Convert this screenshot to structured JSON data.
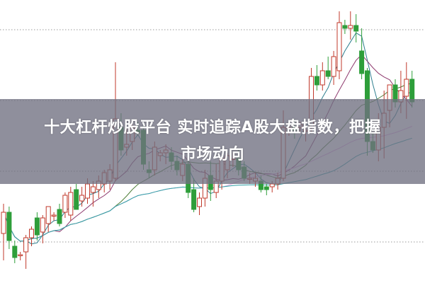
{
  "banner": {
    "line1": "十大杠杆炒股平台 实时追踪A股大盘指数，把握",
    "line2": "市场动向"
  },
  "colors": {
    "up": "#c0392b",
    "down": "#2e9e3a",
    "grid": "#9a9a9a",
    "ma": [
      "#2f7f8f",
      "#8e3a6e",
      "#4f7f3a",
      "#e2a6e2",
      "#2fa0a6"
    ]
  },
  "chart_data": {
    "type": "candlestick",
    "title": "",
    "xlabel": "",
    "ylabel": "",
    "ylim": [
      0,
      100
    ],
    "grid": true,
    "moving_averages": [
      5,
      10,
      20,
      40,
      60
    ],
    "candles": [
      [
        17.5,
        28,
        8,
        25
      ],
      [
        25,
        27,
        12,
        15
      ],
      [
        13,
        15,
        7,
        9
      ],
      [
        10,
        11,
        8,
        10
      ],
      [
        11,
        17,
        5,
        16
      ],
      [
        16,
        20,
        13,
        19
      ],
      [
        23,
        25,
        15,
        17
      ],
      [
        18,
        24,
        14,
        23
      ],
      [
        21,
        27,
        18,
        27
      ],
      [
        24,
        25,
        22,
        24
      ],
      [
        26,
        28,
        20,
        21
      ],
      [
        25,
        32,
        23,
        31
      ],
      [
        24,
        34,
        22,
        32
      ],
      [
        33,
        35,
        26,
        26
      ],
      [
        29,
        34,
        27,
        31
      ],
      [
        30,
        37,
        28,
        35
      ],
      [
        32,
        36,
        27,
        34
      ],
      [
        33,
        38,
        30,
        36
      ],
      [
        35,
        40,
        32,
        39
      ],
      [
        36,
        42,
        33,
        40
      ],
      [
        37,
        78,
        36,
        58
      ],
      [
        55,
        60,
        45,
        47
      ],
      [
        48,
        55,
        45,
        49
      ],
      [
        50,
        56,
        47,
        55
      ],
      [
        54,
        57,
        52,
        53
      ],
      [
        54,
        56,
        40,
        42
      ],
      [
        40,
        43,
        37,
        39
      ],
      [
        40,
        50,
        38,
        48
      ],
      [
        45,
        47,
        43,
        46
      ],
      [
        46,
        49,
        42,
        47
      ],
      [
        46,
        48,
        40,
        43
      ],
      [
        43,
        45,
        38,
        40
      ],
      [
        38,
        44,
        36,
        42
      ],
      [
        42,
        44,
        30,
        32
      ],
      [
        33,
        37,
        25,
        26
      ],
      [
        27,
        32,
        24,
        30
      ],
      [
        30,
        40,
        27,
        37
      ],
      [
        38,
        43,
        29,
        33
      ],
      [
        32,
        42,
        30,
        36
      ],
      [
        36,
        45,
        33,
        44
      ],
      [
        40,
        46,
        37,
        45
      ],
      [
        44,
        46,
        41,
        44
      ],
      [
        44,
        47,
        38,
        40
      ],
      [
        41,
        43,
        36,
        37
      ],
      [
        37,
        39,
        35,
        37
      ],
      [
        36,
        39,
        34,
        37
      ],
      [
        36,
        38,
        32,
        33
      ],
      [
        34,
        35,
        31,
        33
      ],
      [
        34,
        36,
        32,
        35
      ],
      [
        35,
        39,
        33,
        37
      ],
      [
        37,
        61,
        36,
        55
      ],
      [
        55,
        57,
        52,
        55
      ],
      [
        55,
        58,
        51,
        54
      ],
      [
        55,
        57,
        53,
        56
      ],
      [
        54,
        55,
        50,
        54
      ],
      [
        55,
        76,
        53,
        73
      ],
      [
        73,
        77,
        68,
        70
      ],
      [
        70,
        78,
        68,
        75
      ],
      [
        75,
        80,
        72,
        73
      ],
      [
        73,
        82,
        70,
        80
      ],
      [
        75,
        96,
        72,
        92
      ],
      [
        91,
        93,
        88,
        90
      ],
      [
        90,
        96,
        86,
        91
      ],
      [
        91,
        95,
        85,
        89
      ],
      [
        82,
        90,
        72,
        74
      ],
      [
        75,
        76,
        45,
        50
      ],
      [
        50,
        53,
        46,
        47
      ],
      [
        47,
        60,
        43,
        55
      ],
      [
        55,
        68,
        44,
        60
      ],
      [
        61,
        70,
        55,
        70
      ],
      [
        70,
        72,
        62,
        64
      ],
      [
        64,
        75,
        60,
        68
      ],
      [
        66,
        78,
        58,
        72
      ],
      [
        72,
        75,
        62,
        64
      ]
    ]
  }
}
